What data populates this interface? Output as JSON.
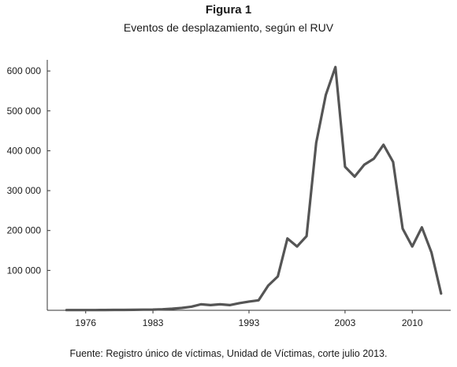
{
  "figure": {
    "label": "Figura 1",
    "title": "Eventos de desplazamiento, según  el RUV",
    "source": "Fuente: Registro único de víctimas, Unidad de Víctimas, corte julio 2013."
  },
  "chart_data": {
    "type": "line",
    "title": "Eventos de desplazamiento, según  el RUV",
    "xlabel": "",
    "ylabel": "",
    "xlim": [
      1972,
      2014
    ],
    "ylim": [
      0,
      620000
    ],
    "x_ticks": [
      1976,
      1983,
      1993,
      2003,
      2010
    ],
    "x_tick_labels": [
      "1976",
      "1983",
      "1993",
      "2003",
      "2010"
    ],
    "y_ticks": [
      100000,
      200000,
      300000,
      400000,
      500000,
      600000
    ],
    "y_tick_labels": [
      "100 000",
      "200 000",
      "300 000",
      "400 000",
      "500 000",
      "600 000"
    ],
    "grid": false,
    "legend": "none",
    "line_color": "#555555",
    "series": [
      {
        "x": [
          1974,
          1975,
          1976,
          1977,
          1978,
          1979,
          1980,
          1981,
          1982,
          1983,
          1984,
          1985,
          1986,
          1987,
          1988,
          1989,
          1990,
          1991,
          1992,
          1993,
          1994,
          1995,
          1996,
          1997,
          1998,
          1999,
          2000,
          2001,
          2002,
          2003,
          2004,
          2005,
          2006,
          2007,
          2008,
          2009,
          2010,
          2011,
          2012,
          2013
        ],
        "values": [
          500,
          500,
          500,
          600,
          700,
          900,
          1000,
          1200,
          1500,
          1800,
          2500,
          4000,
          6000,
          9000,
          15000,
          13000,
          15000,
          13000,
          18000,
          22000,
          25000,
          62000,
          85000,
          180000,
          160000,
          186000,
          420000,
          540000,
          610000,
          360000,
          335000,
          365000,
          380000,
          415000,
          372000,
          205000,
          160000,
          208000,
          145000,
          42000
        ]
      }
    ]
  }
}
